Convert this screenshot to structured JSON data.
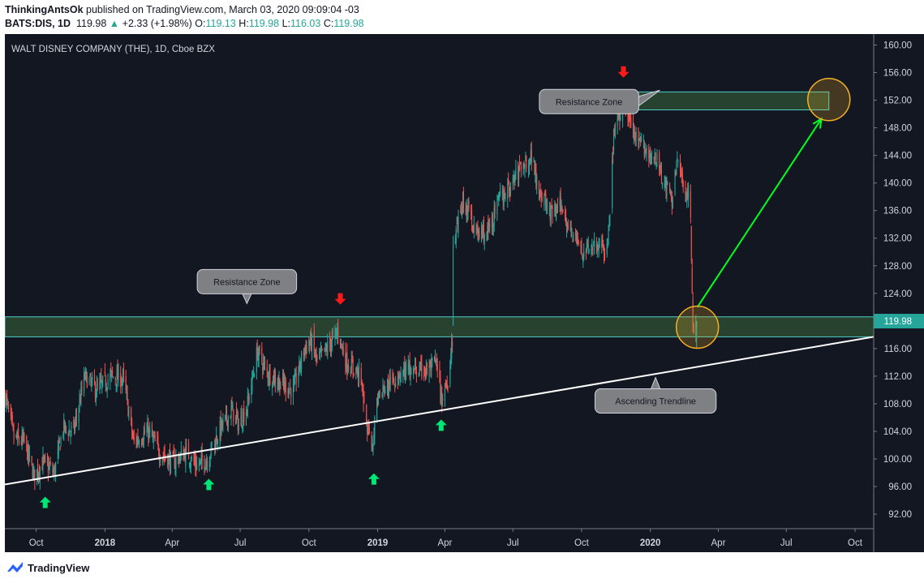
{
  "header": {
    "author": "ThinkingAntsOk",
    "published": "published on TradingView.com, March 03, 2020 09:09:04 -03",
    "symbol": "BATS:DIS, 1D",
    "last": "119.98",
    "change_arrow": "▲",
    "change": "+2.33 (+1.98%)",
    "o_label": "O:",
    "o_value": "119.13",
    "h_label": "H:",
    "h_value": "119.98",
    "l_label": "L:",
    "l_value": "116.03",
    "c_label": "C:",
    "c_value": "119.98"
  },
  "footer": {
    "brand": "TradingView",
    "logo_icon": "tradingview-logo-icon"
  },
  "colors": {
    "background": "#131722",
    "up": "#26a69a",
    "down": "#ef5350",
    "zone_fill": "#2b4a30",
    "zone_border": "#4dd0c8",
    "trendline": "#ffffff",
    "arrow_up": "#00e676",
    "arrow_down": "#ff1a1a",
    "projection": "#00ff22",
    "circle": "#f6b026",
    "last_price_badge": "#26a69a"
  },
  "chart_data": {
    "type": "candlestick",
    "title": "WALT DISNEY COMPANY (THE), 1D, Cboe BZX",
    "xlabel": "",
    "ylabel": "",
    "ylim": [
      90.6,
      161.0
    ],
    "y_ticks": [
      "160.00",
      "156.00",
      "152.00",
      "148.00",
      "144.00",
      "140.00",
      "136.00",
      "132.00",
      "128.00",
      "124.00",
      "116.00",
      "112.00",
      "108.00",
      "104.00",
      "100.00",
      "96.00",
      "92.00"
    ],
    "last_price_label": "119.98",
    "x_range": [
      "2017-08-20",
      "2020-10-26"
    ],
    "x_ticks": [
      {
        "date": "2017-10-01",
        "label": "Oct",
        "bold": false
      },
      {
        "date": "2018-01-01",
        "label": "2018",
        "bold": true
      },
      {
        "date": "2018-04-01",
        "label": "Apr",
        "bold": false
      },
      {
        "date": "2018-07-01",
        "label": "Jul",
        "bold": false
      },
      {
        "date": "2018-10-01",
        "label": "Oct",
        "bold": false
      },
      {
        "date": "2019-01-01",
        "label": "2019",
        "bold": true
      },
      {
        "date": "2019-04-01",
        "label": "Apr",
        "bold": false
      },
      {
        "date": "2019-07-01",
        "label": "Jul",
        "bold": false
      },
      {
        "date": "2019-10-01",
        "label": "Oct",
        "bold": false
      },
      {
        "date": "2020-01-01",
        "label": "2020",
        "bold": true
      },
      {
        "date": "2020-04-01",
        "label": "Apr",
        "bold": false
      },
      {
        "date": "2020-07-01",
        "label": "Jul",
        "bold": false
      },
      {
        "date": "2020-10-01",
        "label": "Oct",
        "bold": false
      }
    ],
    "price_anchors": [
      [
        "2017-08-21",
        109.0
      ],
      [
        "2017-09-01",
        103.0
      ],
      [
        "2017-09-15",
        102.5
      ],
      [
        "2017-09-28",
        97.5
      ],
      [
        "2017-10-10",
        99.5
      ],
      [
        "2017-10-25",
        98.0
      ],
      [
        "2017-11-06",
        104.5
      ],
      [
        "2017-11-20",
        104.0
      ],
      [
        "2017-12-05",
        112.0
      ],
      [
        "2017-12-20",
        110.0
      ],
      [
        "2018-01-10",
        112.0
      ],
      [
        "2018-01-26",
        111.5
      ],
      [
        "2018-02-08",
        102.5
      ],
      [
        "2018-02-28",
        104.0
      ],
      [
        "2018-03-15",
        101.0
      ],
      [
        "2018-04-02",
        99.5
      ],
      [
        "2018-04-20",
        101.0
      ],
      [
        "2018-05-03",
        99.0
      ],
      [
        "2018-05-18",
        100.0
      ],
      [
        "2018-06-05",
        104.5
      ],
      [
        "2018-06-20",
        107.0
      ],
      [
        "2018-06-29",
        105.0
      ],
      [
        "2018-07-10",
        107.5
      ],
      [
        "2018-07-24",
        115.5
      ],
      [
        "2018-08-06",
        112.5
      ],
      [
        "2018-08-24",
        111.0
      ],
      [
        "2018-09-10",
        110.0
      ],
      [
        "2018-09-25",
        116.0
      ],
      [
        "2018-10-04",
        117.0
      ],
      [
        "2018-10-12",
        114.0
      ],
      [
        "2018-10-25",
        116.0
      ],
      [
        "2018-11-09",
        118.5
      ],
      [
        "2018-11-20",
        114.0
      ],
      [
        "2018-12-07",
        112.5
      ],
      [
        "2018-12-24",
        100.5
      ],
      [
        "2018-12-31",
        109.0
      ],
      [
        "2019-01-15",
        110.5
      ],
      [
        "2019-01-30",
        112.5
      ],
      [
        "2019-02-14",
        113.0
      ],
      [
        "2019-03-05",
        112.5
      ],
      [
        "2019-03-20",
        114.0
      ],
      [
        "2019-03-27",
        108.5
      ],
      [
        "2019-04-05",
        111.5
      ],
      [
        "2019-04-11",
        117.0
      ],
      [
        "2019-04-12",
        130.0
      ],
      [
        "2019-04-25",
        137.5
      ],
      [
        "2019-05-15",
        132.5
      ],
      [
        "2019-05-30",
        133.0
      ],
      [
        "2019-06-14",
        138.0
      ],
      [
        "2019-06-28",
        139.5
      ],
      [
        "2019-07-12",
        142.5
      ],
      [
        "2019-07-26",
        144.0
      ],
      [
        "2019-08-06",
        139.0
      ],
      [
        "2019-08-20",
        135.5
      ],
      [
        "2019-09-04",
        136.5
      ],
      [
        "2019-09-18",
        133.0
      ],
      [
        "2019-10-03",
        129.5
      ],
      [
        "2019-10-18",
        131.5
      ],
      [
        "2019-11-01",
        130.0
      ],
      [
        "2019-11-08",
        134.5
      ],
      [
        "2019-11-13",
        147.5
      ],
      [
        "2019-11-27",
        151.5
      ],
      [
        "2019-12-10",
        146.5
      ],
      [
        "2019-12-30",
        144.5
      ],
      [
        "2020-01-10",
        143.0
      ],
      [
        "2020-01-22",
        139.5
      ],
      [
        "2020-01-31",
        137.5
      ],
      [
        "2020-02-06",
        143.5
      ],
      [
        "2020-02-14",
        139.5
      ],
      [
        "2020-02-21",
        138.5
      ],
      [
        "2020-02-24",
        134.0
      ],
      [
        "2020-02-27",
        119.0
      ],
      [
        "2020-03-03",
        119.98
      ]
    ],
    "zones": [
      {
        "name": "resistance-zone-lower",
        "y0": 117.7,
        "y1": 120.6,
        "x0": "2017-08-20",
        "x1": "2020-10-26"
      },
      {
        "name": "resistance-zone-upper",
        "y0": 150.6,
        "y1": 153.2,
        "x0": "2019-11-27",
        "x1": "2020-08-27"
      }
    ],
    "trendline": {
      "x0": "2017-08-20",
      "y0": 96.3,
      "x1": "2020-10-26",
      "y1": 117.7
    },
    "projection": {
      "x0": "2020-03-04",
      "y0": 122.0,
      "x1": "2020-08-17",
      "y1": 149.3
    },
    "circles": [
      {
        "name": "target-circle-current",
        "date": "2020-03-04",
        "price": 119.1
      },
      {
        "name": "target-circle-projected",
        "date": "2020-08-27",
        "price": 152.1
      }
    ],
    "up_arrows": [
      {
        "date": "2017-10-13",
        "price": 93.7
      },
      {
        "date": "2018-05-20",
        "price": 96.3
      },
      {
        "date": "2018-12-27",
        "price": 97.1
      },
      {
        "date": "2019-03-27",
        "price": 104.9
      }
    ],
    "down_arrows": [
      {
        "date": "2018-11-12",
        "price": 123.2
      },
      {
        "date": "2019-11-26",
        "price": 156.1
      }
    ],
    "annotations": [
      {
        "name": "resistance-zone-callout-1",
        "text": "Resistance Zone",
        "date": "2018-07-10",
        "price": 125.7,
        "pointer": "down"
      },
      {
        "name": "resistance-zone-callout-2",
        "text": "Resistance Zone",
        "date": "2019-10-11",
        "price": 151.8,
        "pointer": "right"
      },
      {
        "name": "ascending-trendline-callout",
        "text": "Ascending Trendline",
        "date": "2020-01-08",
        "price": 108.4,
        "pointer": "up"
      }
    ]
  }
}
